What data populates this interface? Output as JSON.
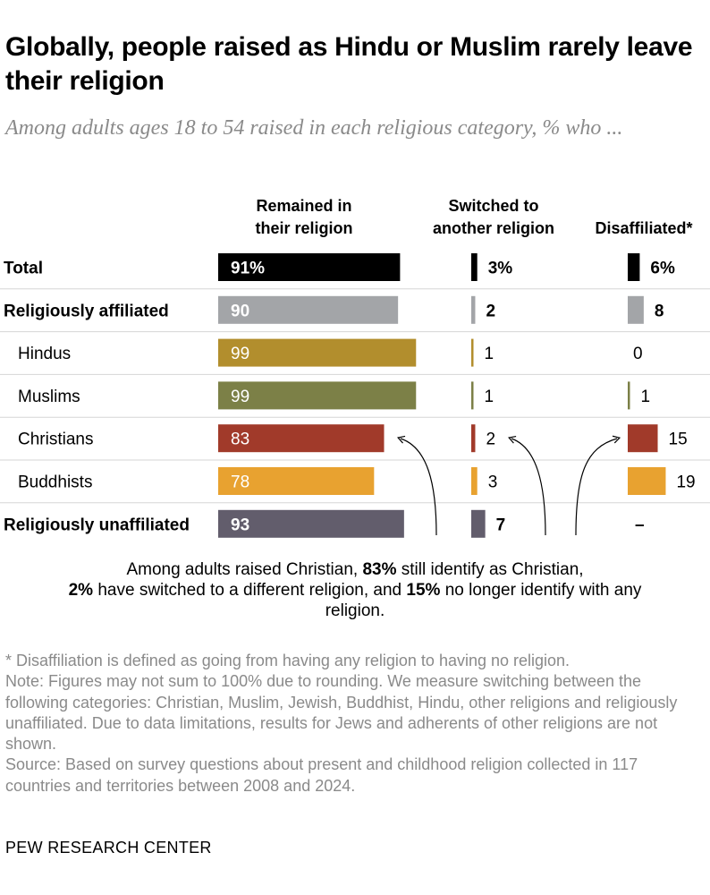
{
  "title": "Globally, people raised as Hindu or Muslim rarely leave their religion",
  "subtitle": "Among adults ages 18 to 54 raised in each religious category, % who ...",
  "chart_data": {
    "type": "bar",
    "orientation": "horizontal",
    "columns": [
      {
        "key": "remained",
        "label_line1": "Remained in",
        "label_line2": "their religion"
      },
      {
        "key": "switched",
        "label_line1": "Switched to",
        "label_line2": "another religion"
      },
      {
        "key": "disaffiliated",
        "label_line1": "",
        "label_line2": "Disaffiliated*"
      }
    ],
    "rows": [
      {
        "label": "Total",
        "bold": true,
        "indent": false,
        "color": "#000000",
        "remained": 91,
        "remained_label": "91%",
        "switched": 3,
        "switched_label": "3%",
        "disaffiliated": 6,
        "disaffiliated_label": "6%"
      },
      {
        "label": "Religiously affiliated",
        "bold": true,
        "indent": false,
        "color": "#a3a5a8",
        "remained": 90,
        "remained_label": "90",
        "switched": 2,
        "switched_label": "2",
        "disaffiliated": 8,
        "disaffiliated_label": "8"
      },
      {
        "label": "Hindus",
        "bold": false,
        "indent": true,
        "color": "#b28e2d",
        "remained": 99,
        "remained_label": "99",
        "switched": 1,
        "switched_label": "1",
        "disaffiliated": 0,
        "disaffiliated_label": "0"
      },
      {
        "label": "Muslims",
        "bold": false,
        "indent": true,
        "color": "#7c8047",
        "remained": 99,
        "remained_label": "99",
        "switched": 1,
        "switched_label": "1",
        "disaffiliated": 1,
        "disaffiliated_label": "1"
      },
      {
        "label": "Christians",
        "bold": false,
        "indent": true,
        "color": "#a13a2a",
        "remained": 83,
        "remained_label": "83",
        "switched": 2,
        "switched_label": "2",
        "disaffiliated": 15,
        "disaffiliated_label": "15"
      },
      {
        "label": "Buddhists",
        "bold": false,
        "indent": true,
        "color": "#e8a230",
        "remained": 78,
        "remained_label": "78",
        "switched": 3,
        "switched_label": "3",
        "disaffiliated": 19,
        "disaffiliated_label": "19"
      },
      {
        "label": "Religiously unaffiliated",
        "bold": true,
        "indent": false,
        "color": "#625d6c",
        "remained": 93,
        "remained_label": "93",
        "switched": 7,
        "switched_label": "7",
        "disaffiliated": null,
        "disaffiliated_label": "–"
      }
    ],
    "xlim": [
      0,
      100
    ]
  },
  "annotation": {
    "part1": "Among adults raised Christian, ",
    "v1": "83%",
    "part2": " still identify as Christian,",
    "v2": "2%",
    "part3": " have switched to a different religion, and ",
    "v3": "15%",
    "part4": " no longer identify with any religion."
  },
  "notes": {
    "asterisk": "* Disaffiliation is defined as going from having any religion to having no religion.",
    "note": "Note: Figures may not sum to 100% due to rounding. We measure switching between the following categories: Christian, Muslim, Jewish, Buddhist, Hindu, other religions and religiously unaffiliated. Due to data limitations, results for Jews and adherents of other religions are not shown.",
    "source": "Source: Based on survey questions about present and childhood religion collected in 117 countries and territories between 2008 and 2024."
  },
  "footer": "PEW RESEARCH CENTER"
}
